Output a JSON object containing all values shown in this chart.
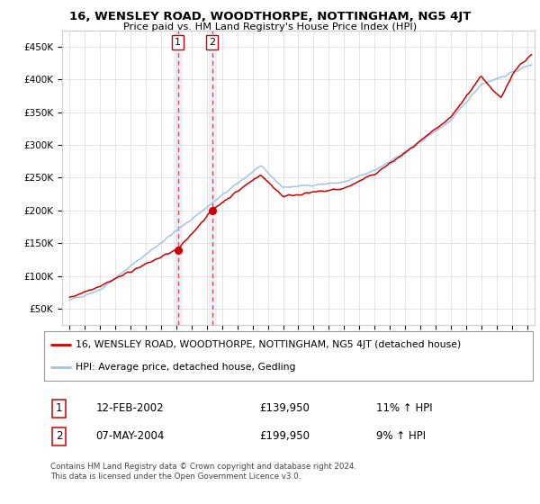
{
  "title": "16, WENSLEY ROAD, WOODTHORPE, NOTTINGHAM, NG5 4JT",
  "subtitle": "Price paid vs. HM Land Registry's House Price Index (HPI)",
  "legend_line1": "16, WENSLEY ROAD, WOODTHORPE, NOTTINGHAM, NG5 4JT (detached house)",
  "legend_line2": "HPI: Average price, detached house, Gedling",
  "transaction1_date": "12-FEB-2002",
  "transaction1_price": "£139,950",
  "transaction1_hpi": "11% ↑ HPI",
  "transaction2_date": "07-MAY-2004",
  "transaction2_price": "£199,950",
  "transaction2_hpi": "9% ↑ HPI",
  "footnote": "Contains HM Land Registry data © Crown copyright and database right 2024.\nThis data is licensed under the Open Government Licence v3.0.",
  "hpi_color": "#a0c4e8",
  "price_color": "#cc0000",
  "shade_color": "#c8d8f0",
  "marker1_x": 2002.1,
  "marker1_y": 139950,
  "marker2_x": 2004.35,
  "marker2_y": 199950,
  "vline1_x": 2002.1,
  "vline2_x": 2004.35,
  "shade1_xstart": 2001.85,
  "shade1_xend": 2002.4,
  "shade2_xstart": 2004.15,
  "shade2_xend": 2004.65,
  "ylim_min": 25000,
  "ylim_max": 475000,
  "xlim_min": 1994.5,
  "xlim_max": 2025.5,
  "background_color": "#ffffff",
  "grid_color": "#d8d8d8",
  "yticks": [
    50000,
    100000,
    150000,
    200000,
    250000,
    300000,
    350000,
    400000,
    450000
  ],
  "ytick_labels": [
    "£50K",
    "£100K",
    "£150K",
    "£200K",
    "£250K",
    "£300K",
    "£350K",
    "£400K",
    "£450K"
  ]
}
